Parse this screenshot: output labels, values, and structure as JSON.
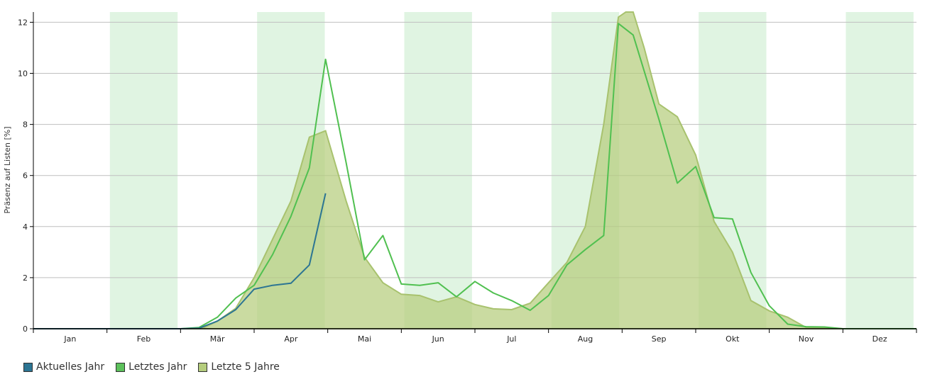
{
  "chart_data": {
    "type": "area",
    "ylabel": "Präsenz auf Listen [%]",
    "ylim": [
      0,
      12.4
    ],
    "yticks": [
      0,
      2,
      4,
      6,
      8,
      10,
      12
    ],
    "xlim": [
      0,
      12
    ],
    "months": [
      "Jan",
      "Feb",
      "Mär",
      "Apr",
      "Mai",
      "Jun",
      "Jul",
      "Aug",
      "Sep",
      "Okt",
      "Nov",
      "Dez"
    ],
    "shaded_months": [
      1,
      3,
      5,
      7,
      9,
      11
    ],
    "grid": true,
    "legend_position": "bottom-left",
    "series": [
      {
        "name": "Letzte 5 Jahre",
        "kind": "area",
        "color": "#b5cd7d",
        "stroke": "#a8c26e",
        "points": [
          [
            0,
            0
          ],
          [
            1,
            0
          ],
          [
            2,
            0
          ],
          [
            2.3,
            0.02
          ],
          [
            2.5,
            0.3
          ],
          [
            2.75,
            0.8
          ],
          [
            3,
            2.0
          ],
          [
            3.25,
            3.5
          ],
          [
            3.5,
            5.0
          ],
          [
            3.75,
            7.5
          ],
          [
            3.97,
            7.75
          ],
          [
            4.25,
            5.0
          ],
          [
            4.5,
            2.8
          ],
          [
            4.75,
            1.8
          ],
          [
            5,
            1.35
          ],
          [
            5.25,
            1.3
          ],
          [
            5.5,
            1.05
          ],
          [
            5.75,
            1.25
          ],
          [
            6,
            0.95
          ],
          [
            6.25,
            0.78
          ],
          [
            6.5,
            0.75
          ],
          [
            6.75,
            1.0
          ],
          [
            7,
            1.8
          ],
          [
            7.25,
            2.6
          ],
          [
            7.5,
            4.0
          ],
          [
            7.75,
            8.0
          ],
          [
            7.95,
            12.2
          ],
          [
            8.05,
            12.4
          ],
          [
            8.15,
            12.4
          ],
          [
            8.3,
            11.0
          ],
          [
            8.5,
            8.8
          ],
          [
            8.75,
            8.3
          ],
          [
            9,
            6.8
          ],
          [
            9.25,
            4.2
          ],
          [
            9.5,
            3.0
          ],
          [
            9.75,
            1.1
          ],
          [
            10,
            0.7
          ],
          [
            10.25,
            0.45
          ],
          [
            10.5,
            0.05
          ],
          [
            11,
            0
          ],
          [
            12,
            0
          ]
        ]
      },
      {
        "name": "Letztes Jahr",
        "kind": "line",
        "color": "#5cc15b",
        "stroke": "#50c050",
        "points": [
          [
            0,
            0
          ],
          [
            1,
            0
          ],
          [
            2,
            0
          ],
          [
            2.25,
            0.05
          ],
          [
            2.5,
            0.45
          ],
          [
            2.75,
            1.2
          ],
          [
            3,
            1.7
          ],
          [
            3.25,
            2.9
          ],
          [
            3.5,
            4.4
          ],
          [
            3.75,
            6.3
          ],
          [
            3.97,
            10.55
          ],
          [
            4.25,
            6.5
          ],
          [
            4.5,
            2.7
          ],
          [
            4.75,
            3.65
          ],
          [
            5,
            1.75
          ],
          [
            5.25,
            1.7
          ],
          [
            5.5,
            1.8
          ],
          [
            5.75,
            1.25
          ],
          [
            6,
            1.85
          ],
          [
            6.25,
            1.4
          ],
          [
            6.5,
            1.1
          ],
          [
            6.75,
            0.72
          ],
          [
            7,
            1.3
          ],
          [
            7.25,
            2.5
          ],
          [
            7.5,
            3.1
          ],
          [
            7.75,
            3.65
          ],
          [
            7.95,
            11.95
          ],
          [
            8.15,
            11.5
          ],
          [
            8.5,
            8.2
          ],
          [
            8.75,
            5.7
          ],
          [
            9,
            6.35
          ],
          [
            9.25,
            4.35
          ],
          [
            9.5,
            4.3
          ],
          [
            9.75,
            2.2
          ],
          [
            10,
            0.9
          ],
          [
            10.25,
            0.18
          ],
          [
            10.5,
            0.08
          ],
          [
            10.75,
            0.07
          ],
          [
            11,
            0
          ],
          [
            12,
            0
          ]
        ]
      },
      {
        "name": "Aktuelles Jahr",
        "kind": "line",
        "color": "#2c7593",
        "stroke": "#2c7593",
        "points": [
          [
            0,
            0
          ],
          [
            1,
            0
          ],
          [
            2,
            0
          ],
          [
            2.25,
            0.02
          ],
          [
            2.5,
            0.3
          ],
          [
            2.75,
            0.75
          ],
          [
            3,
            1.55
          ],
          [
            3.25,
            1.7
          ],
          [
            3.5,
            1.78
          ],
          [
            3.75,
            2.5
          ],
          [
            3.97,
            5.3
          ]
        ]
      }
    ]
  }
}
